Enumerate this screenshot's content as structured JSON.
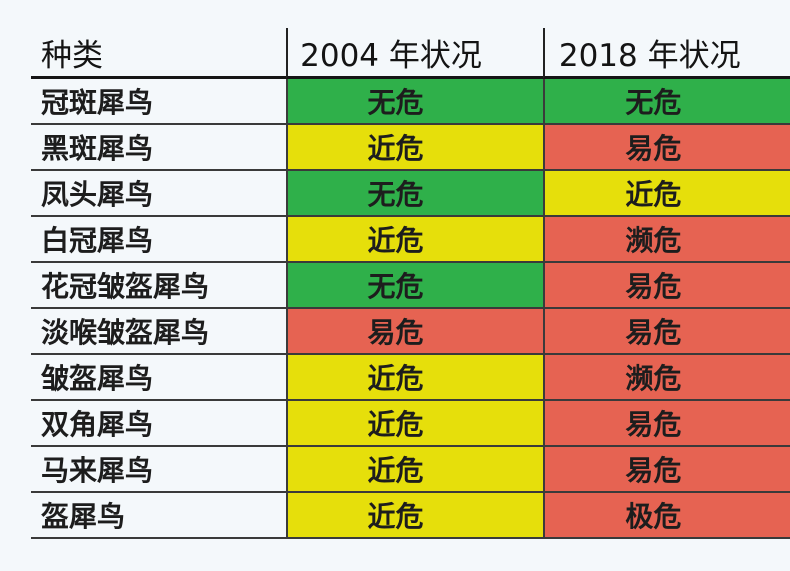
{
  "header": {
    "species": "种类",
    "status_2004": "2004 年状况",
    "status_2018": "2018 年状况"
  },
  "status_colors": {
    "无危": "#2fb04a",
    "近危": "#e6df0b",
    "易危": "#e66352",
    "濒危": "#e66352",
    "极危": "#e66352"
  },
  "rows": [
    {
      "species": "冠斑犀鸟",
      "s2004": "无危",
      "s2018": "无危",
      "c2004": "lc",
      "c2018": "lc"
    },
    {
      "species": "黑斑犀鸟",
      "s2004": "近危",
      "s2018": "易危",
      "c2004": "nt",
      "c2018": "vu"
    },
    {
      "species": "凤头犀鸟",
      "s2004": "无危",
      "s2018": "近危",
      "c2004": "lc",
      "c2018": "nt"
    },
    {
      "species": "白冠犀鸟",
      "s2004": "近危",
      "s2018": "濒危",
      "c2004": "nt",
      "c2018": "en"
    },
    {
      "species": "花冠皱盔犀鸟",
      "s2004": "无危",
      "s2018": "易危",
      "c2004": "lc",
      "c2018": "vu"
    },
    {
      "species": "淡喉皱盔犀鸟",
      "s2004": "易危",
      "s2018": "易危",
      "c2004": "vu",
      "c2018": "vu"
    },
    {
      "species": "皱盔犀鸟",
      "s2004": "近危",
      "s2018": "濒危",
      "c2004": "nt",
      "c2018": "en"
    },
    {
      "species": "双角犀鸟",
      "s2004": "近危",
      "s2018": "易危",
      "c2004": "nt",
      "c2018": "vu"
    },
    {
      "species": "马来犀鸟",
      "s2004": "近危",
      "s2018": "易危",
      "c2004": "nt",
      "c2018": "vu"
    },
    {
      "species": "盔犀鸟",
      "s2004": "近危",
      "s2018": "极危",
      "c2004": "nt",
      "c2018": "cr"
    }
  ]
}
